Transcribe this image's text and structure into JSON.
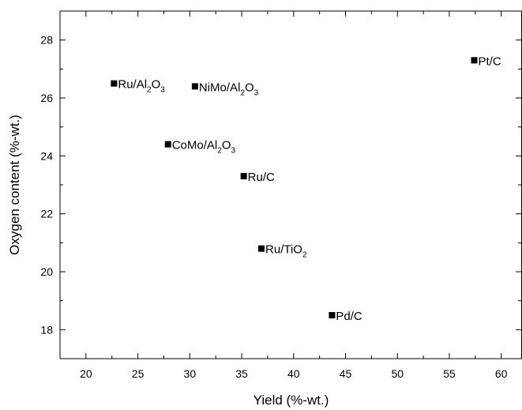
{
  "chart_data": {
    "type": "scatter",
    "title": "",
    "xlabel": "Yield (%-wt.)",
    "ylabel": "Oxygen content (%-wt.)",
    "xlim": [
      17.5,
      62
    ],
    "ylim": [
      17,
      29
    ],
    "xticks": [
      20,
      25,
      30,
      35,
      40,
      45,
      50,
      55,
      60
    ],
    "yticks": [
      18,
      20,
      22,
      24,
      26,
      28
    ],
    "grid": false,
    "legend": "none",
    "marker": "square",
    "marker_color": "#000000",
    "points": [
      {
        "label": "Ru/Al2O3",
        "label_parts": [
          [
            "Ru/Al",
            ""
          ],
          [
            "2",
            "sub"
          ],
          [
            "O",
            ""
          ],
          [
            "3",
            "sub"
          ]
        ],
        "x": 22.7,
        "y": 26.5
      },
      {
        "label": "NiMo/Al2O3",
        "label_parts": [
          [
            "NiMo/Al",
            ""
          ],
          [
            "2",
            "sub"
          ],
          [
            "O",
            ""
          ],
          [
            "3",
            "sub"
          ]
        ],
        "x": 30.5,
        "y": 26.4
      },
      {
        "label": "CoMo/Al2O3",
        "label_parts": [
          [
            "CoMo/Al",
            ""
          ],
          [
            "2",
            "sub"
          ],
          [
            "O",
            ""
          ],
          [
            "3",
            "sub"
          ]
        ],
        "x": 27.9,
        "y": 24.4
      },
      {
        "label": "Ru/C",
        "label_parts": [
          [
            "Ru/C",
            ""
          ]
        ],
        "x": 35.2,
        "y": 23.3
      },
      {
        "label": "Ru/TiO2",
        "label_parts": [
          [
            "Ru/TiO",
            ""
          ],
          [
            "2",
            "sub"
          ]
        ],
        "x": 36.9,
        "y": 20.8
      },
      {
        "label": "Pd/C",
        "label_parts": [
          [
            "Pd/C",
            ""
          ]
        ],
        "x": 43.7,
        "y": 18.5
      },
      {
        "label": "Pt/C",
        "label_parts": [
          [
            "Pt/C",
            ""
          ]
        ],
        "x": 57.4,
        "y": 27.3
      }
    ]
  }
}
